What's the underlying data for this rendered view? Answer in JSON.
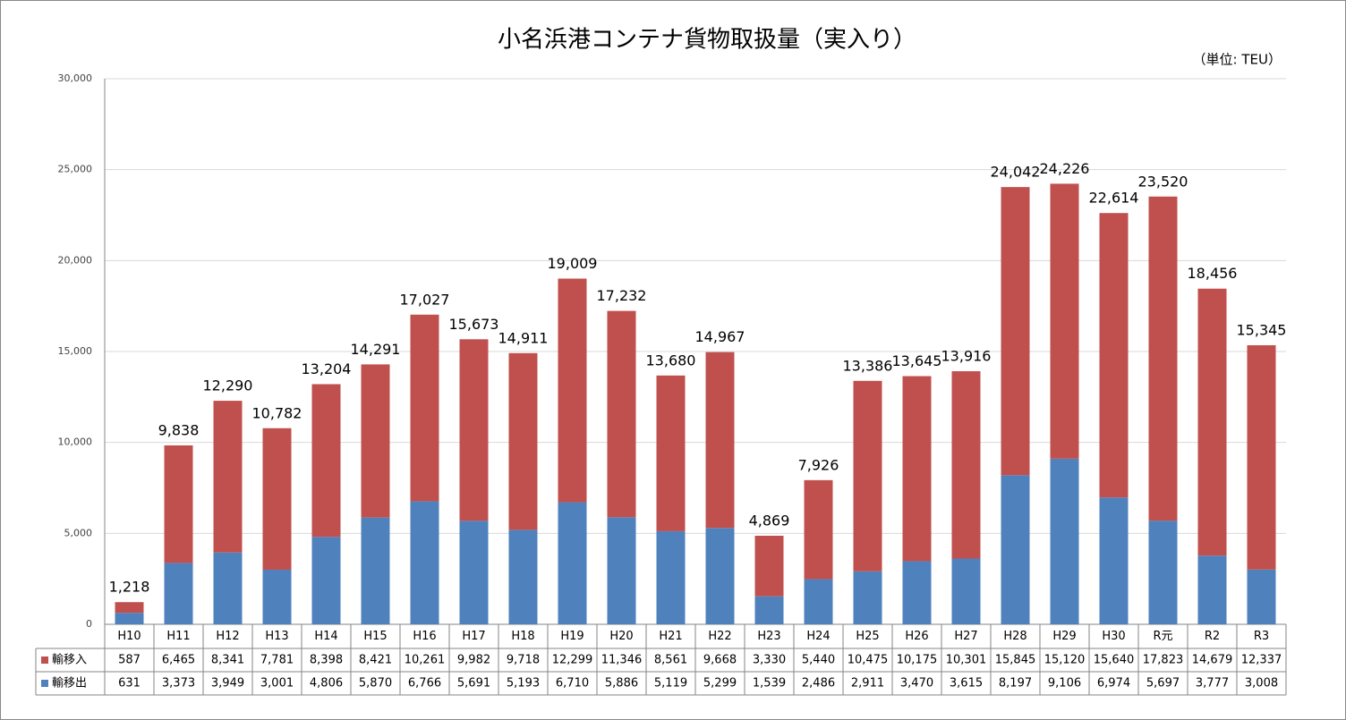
{
  "chart_data": {
    "type": "stacked_bar",
    "title": "小名浜港コンテナ貨物取扱量（実入り）",
    "subtitle": "（単位: TEU）",
    "categories": [
      "H10",
      "H11",
      "H12",
      "H13",
      "H14",
      "H15",
      "H16",
      "H17",
      "H18",
      "H19",
      "H20",
      "H21",
      "H22",
      "H23",
      "H24",
      "H25",
      "H26",
      "H27",
      "H28",
      "H29",
      "H30",
      "R元",
      "R2",
      "R3"
    ],
    "series": [
      {
        "name": "輸移出",
        "color": "#4f81bd",
        "values": [
          631,
          3373,
          3949,
          3001,
          4806,
          5870,
          6766,
          5691,
          5193,
          6710,
          5886,
          5119,
          5299,
          1539,
          2486,
          2911,
          3470,
          3615,
          8197,
          9106,
          6974,
          5697,
          3777,
          3008
        ],
        "value_labels": [
          "631",
          "3,373",
          "3,949",
          "3,001",
          "4,806",
          "5,870",
          "6,766",
          "5,691",
          "5,193",
          "6,710",
          "5,886",
          "5,119",
          "5,299",
          "1,539",
          "2,486",
          "2,911",
          "3,470",
          "3,615",
          "8,197",
          "9,106",
          "6,974",
          "5,697",
          "3,777",
          "3,008"
        ]
      },
      {
        "name": "輸移入",
        "color": "#c0504d",
        "values": [
          587,
          6465,
          8341,
          7781,
          8398,
          8421,
          10261,
          9982,
          9718,
          12299,
          11346,
          8561,
          9668,
          3330,
          5440,
          10475,
          10175,
          10301,
          15845,
          15120,
          15640,
          17823,
          14679,
          12337
        ],
        "value_labels": [
          "587",
          "6,465",
          "8,341",
          "7,781",
          "8,398",
          "8,421",
          "10,261",
          "9,982",
          "9,718",
          "12,299",
          "11,346",
          "8,561",
          "9,668",
          "3,330",
          "5,440",
          "10,475",
          "10,175",
          "10,301",
          "15,845",
          "15,120",
          "15,640",
          "17,823",
          "14,679",
          "12,337"
        ]
      }
    ],
    "totals": {
      "values": [
        1218,
        9838,
        12290,
        10782,
        13204,
        14291,
        17027,
        15673,
        14911,
        19009,
        17232,
        13680,
        14967,
        4869,
        7926,
        13386,
        13645,
        13916,
        24042,
        24226,
        22614,
        23520,
        18456,
        15345
      ],
      "value_labels": [
        "1,218",
        "9,838",
        "12,290",
        "10,782",
        "13,204",
        "14,291",
        "17,027",
        "15,673",
        "14,911",
        "19,009",
        "17,232",
        "13,680",
        "14,967",
        "4,869",
        "7,926",
        "13,386",
        "13,645",
        "13,916",
        "24,042",
        "24,226",
        "22,614",
        "23,520",
        "18,456",
        "15,345"
      ]
    },
    "ylim": [
      0,
      30000
    ],
    "yticks": [
      0,
      {
        "value": 5000,
        "label": "5,000"
      },
      {
        "value": 10000,
        "label": "10,000"
      },
      {
        "value": 15000,
        "label": "15,000"
      },
      {
        "value": 20000,
        "label": "20,000"
      },
      {
        "value": 25000,
        "label": "25,000"
      },
      {
        "value": 30000,
        "label": "30,000"
      }
    ],
    "grid": true
  }
}
